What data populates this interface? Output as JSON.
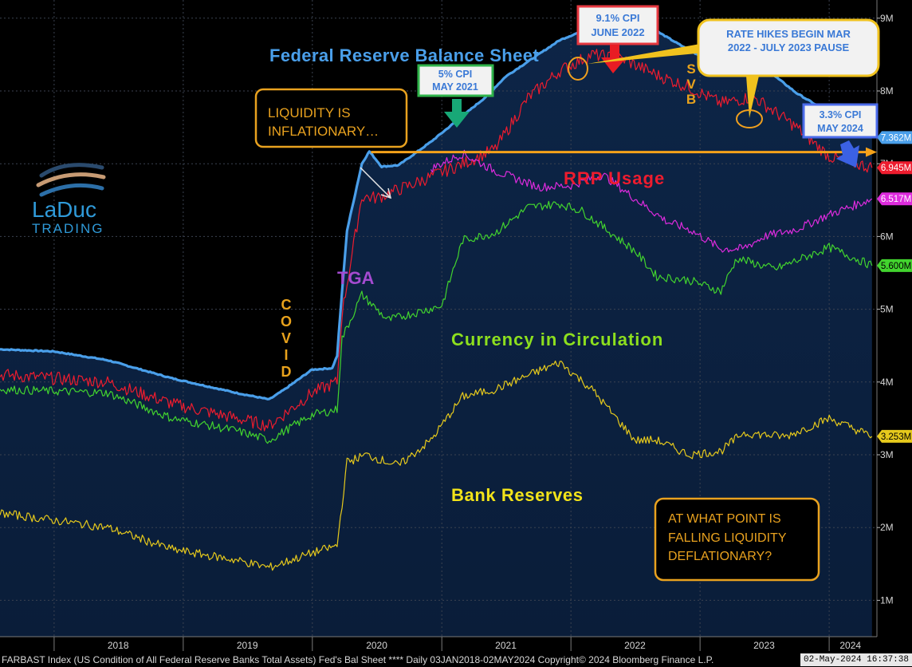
{
  "chart_data": {
    "type": "line",
    "x_range": [
      "2017-08-01",
      "2024-05-15"
    ],
    "ylim": [
      0.5,
      9.25
    ],
    "y_unit": "M",
    "y_ticks": [
      {
        "v": 1,
        "label": "1M"
      },
      {
        "v": 2,
        "label": "2M"
      },
      {
        "v": 3,
        "label": "3M"
      },
      {
        "v": 4,
        "label": "4M"
      },
      {
        "v": 5,
        "label": "5M"
      },
      {
        "v": 6,
        "label": "6M"
      },
      {
        "v": 7,
        "label": "7M"
      },
      {
        "v": 8,
        "label": "8M"
      },
      {
        "v": 9,
        "label": "9M"
      }
    ],
    "x_ticks": [
      {
        "date": "2018-07-01",
        "label": "2018"
      },
      {
        "date": "2019-07-01",
        "label": "2019"
      },
      {
        "date": "2020-07-01",
        "label": "2020"
      },
      {
        "date": "2021-07-01",
        "label": "2021"
      },
      {
        "date": "2022-07-01",
        "label": "2022"
      },
      {
        "date": "2023-07-01",
        "label": "2023"
      },
      {
        "date": "2024-03-01",
        "label": "2024"
      }
    ],
    "year_gridlines": [
      "2018-01-01",
      "2019-01-01",
      "2020-01-01",
      "2021-01-01",
      "2022-01-01",
      "2023-01-01",
      "2024-01-01"
    ],
    "series": [
      {
        "key": "balance",
        "color": "#4a9fea",
        "width": 3.2,
        "last_label": "7.362M",
        "points": [
          [
            "2017-08-01",
            4.45
          ],
          [
            "2018-01-01",
            4.42
          ],
          [
            "2018-06-01",
            4.3
          ],
          [
            "2018-12-01",
            4.05
          ],
          [
            "2019-06-01",
            3.85
          ],
          [
            "2019-09-01",
            3.76
          ],
          [
            "2019-10-15",
            3.9
          ],
          [
            "2019-12-31",
            4.17
          ],
          [
            "2020-02-26",
            4.19
          ],
          [
            "2020-03-11",
            4.36
          ],
          [
            "2020-03-25",
            5.25
          ],
          [
            "2020-04-08",
            6.08
          ],
          [
            "2020-05-20",
            7.0
          ],
          [
            "2020-06-10",
            7.17
          ],
          [
            "2020-07-15",
            6.96
          ],
          [
            "2020-09-01",
            6.98
          ],
          [
            "2020-12-01",
            7.3
          ],
          [
            "2021-05-01",
            7.9
          ],
          [
            "2021-07-01",
            8.2
          ],
          [
            "2021-12-01",
            8.7
          ],
          [
            "2022-04-13",
            8.96
          ],
          [
            "2022-06-15",
            8.92
          ],
          [
            "2022-09-01",
            8.82
          ],
          [
            "2022-12-01",
            8.56
          ],
          [
            "2023-03-01",
            8.34
          ],
          [
            "2023-03-15",
            8.74
          ],
          [
            "2023-04-15",
            8.6
          ],
          [
            "2023-07-01",
            8.32
          ],
          [
            "2023-10-01",
            7.97
          ],
          [
            "2024-01-01",
            7.7
          ],
          [
            "2024-05-01",
            7.36
          ]
        ]
      },
      {
        "key": "rrp",
        "color": "#ee1c2e",
        "width": 1.2,
        "last_label": "6.945M",
        "points": [
          [
            "2017-08-01",
            4.1
          ],
          [
            "2018-06-01",
            4.0
          ],
          [
            "2018-12-01",
            3.7
          ],
          [
            "2019-06-01",
            3.5
          ],
          [
            "2019-09-01",
            3.4
          ],
          [
            "2019-12-31",
            3.85
          ],
          [
            "2020-03-11",
            4.0
          ],
          [
            "2020-03-25",
            4.95
          ],
          [
            "2020-05-20",
            6.55
          ],
          [
            "2020-07-01",
            6.53
          ],
          [
            "2020-10-01",
            6.7
          ],
          [
            "2021-03-01",
            7.0
          ],
          [
            "2021-06-01",
            7.2
          ],
          [
            "2021-09-01",
            7.9
          ],
          [
            "2021-12-01",
            8.28
          ],
          [
            "2022-03-01",
            8.5
          ],
          [
            "2022-06-01",
            8.43
          ],
          [
            "2022-09-01",
            8.22
          ],
          [
            "2022-12-01",
            8.05
          ],
          [
            "2023-03-01",
            7.83
          ],
          [
            "2023-06-01",
            7.92
          ],
          [
            "2023-10-01",
            7.5
          ],
          [
            "2024-01-01",
            7.1
          ],
          [
            "2024-05-01",
            6.945
          ]
        ]
      },
      {
        "key": "tga",
        "color": "#dd2bdd",
        "width": 1.2,
        "last_label": "6.517M",
        "points": [
          [
            "2020-12-01",
            6.93
          ],
          [
            "2021-03-01",
            7.14
          ],
          [
            "2021-06-01",
            6.9
          ],
          [
            "2021-10-01",
            6.68
          ],
          [
            "2022-01-01",
            6.7
          ],
          [
            "2022-04-01",
            6.85
          ],
          [
            "2022-07-01",
            6.52
          ],
          [
            "2022-10-01",
            6.2
          ],
          [
            "2022-12-01",
            6.1
          ],
          [
            "2023-03-01",
            5.83
          ],
          [
            "2023-05-01",
            5.83
          ],
          [
            "2023-07-01",
            6.0
          ],
          [
            "2023-10-01",
            6.1
          ],
          [
            "2024-01-01",
            6.3
          ],
          [
            "2024-05-01",
            6.517
          ]
        ]
      },
      {
        "key": "currency",
        "color": "#42d42e",
        "width": 1.2,
        "last_label": "5.600M",
        "points": [
          [
            "2017-08-01",
            3.9
          ],
          [
            "2018-06-01",
            3.85
          ],
          [
            "2018-12-01",
            3.5
          ],
          [
            "2019-06-01",
            3.33
          ],
          [
            "2019-09-01",
            3.2
          ],
          [
            "2019-12-31",
            3.55
          ],
          [
            "2020-03-11",
            3.62
          ],
          [
            "2020-03-25",
            4.6
          ],
          [
            "2020-05-20",
            5.2
          ],
          [
            "2020-08-01",
            4.85
          ],
          [
            "2021-01-01",
            5.05
          ],
          [
            "2021-03-01",
            5.95
          ],
          [
            "2021-06-01",
            6.05
          ],
          [
            "2021-09-01",
            6.4
          ],
          [
            "2021-12-01",
            6.45
          ],
          [
            "2022-02-01",
            6.35
          ],
          [
            "2022-07-01",
            5.8
          ],
          [
            "2022-09-01",
            5.45
          ],
          [
            "2022-12-01",
            5.4
          ],
          [
            "2023-03-01",
            5.25
          ],
          [
            "2023-04-15",
            5.7
          ],
          [
            "2023-08-01",
            5.55
          ],
          [
            "2024-01-01",
            5.85
          ],
          [
            "2024-05-01",
            5.6
          ]
        ]
      },
      {
        "key": "reserves",
        "color": "#e6c91c",
        "width": 1.2,
        "last_label": "3.253M",
        "points": [
          [
            "2017-08-01",
            2.2
          ],
          [
            "2018-06-01",
            2.0
          ],
          [
            "2018-12-01",
            1.7
          ],
          [
            "2019-06-01",
            1.55
          ],
          [
            "2019-09-01",
            1.45
          ],
          [
            "2019-12-31",
            1.65
          ],
          [
            "2020-03-11",
            1.75
          ],
          [
            "2020-04-08",
            2.9
          ],
          [
            "2020-06-01",
            3.0
          ],
          [
            "2020-09-01",
            2.85
          ],
          [
            "2020-12-01",
            3.2
          ],
          [
            "2021-03-01",
            3.8
          ],
          [
            "2021-06-01",
            3.9
          ],
          [
            "2021-10-01",
            4.15
          ],
          [
            "2021-12-01",
            4.27
          ],
          [
            "2022-03-01",
            3.9
          ],
          [
            "2022-07-01",
            3.2
          ],
          [
            "2022-09-01",
            3.2
          ],
          [
            "2022-12-01",
            3.0
          ],
          [
            "2023-03-01",
            3.05
          ],
          [
            "2023-05-01",
            3.3
          ],
          [
            "2023-09-01",
            3.25
          ],
          [
            "2024-01-01",
            3.5
          ],
          [
            "2024-05-01",
            3.253
          ]
        ]
      }
    ],
    "rrp_line": {
      "value": 7.16,
      "color": "#f5a21a"
    },
    "annotations": [
      {
        "key": "title",
        "text": "Federal Reserve Balance Sheet",
        "color": "#4a9fea"
      },
      {
        "key": "rrp",
        "text": "RRP Usage",
        "color": "#ee1c2e"
      },
      {
        "key": "tga",
        "text": "TGA",
        "color": "#a44bd0"
      },
      {
        "key": "currency",
        "text": "Currency in Circulation",
        "color": "#8ddf1e"
      },
      {
        "key": "reserves",
        "text": "Bank Reserves",
        "color": "#f2e31a"
      },
      {
        "key": "covid",
        "text": "COVID",
        "color": "#e8a21c"
      },
      {
        "key": "svb",
        "text": "SVB",
        "color": "#e8a21c"
      }
    ],
    "callouts": [
      {
        "key": "liquidity",
        "lines": [
          "LIQUIDITY IS",
          "INFLATIONARY…"
        ]
      },
      {
        "key": "cpi5",
        "lines": [
          "5% CPI",
          "MAY 2021"
        ]
      },
      {
        "key": "cpi91",
        "lines": [
          "9.1% CPI",
          "JUNE 2022"
        ]
      },
      {
        "key": "hikes",
        "lines": [
          "RATE HIKES BEGIN MAR",
          "2022 - JULY 2023 PAUSE"
        ]
      },
      {
        "key": "cpi33",
        "lines": [
          "3.3% CPI",
          "MAY 2024"
        ]
      },
      {
        "key": "falling",
        "lines": [
          "AT WHAT POINT IS",
          "FALLING LIQUIDITY",
          "DEFLATIONARY?"
        ]
      }
    ],
    "logo": {
      "line1": "LaDuc",
      "line2": "TRADING"
    }
  },
  "footer": {
    "source": "FARBAST Index (US Condition of All Federal Reserve Banks Total Assets) Fed's Bal Sheet **** Daily 03JAN2018-02MAY2024  Copyright© 2024 Bloomberg Finance L.P.",
    "timestamp": "02-May-2024 16:37:38"
  }
}
